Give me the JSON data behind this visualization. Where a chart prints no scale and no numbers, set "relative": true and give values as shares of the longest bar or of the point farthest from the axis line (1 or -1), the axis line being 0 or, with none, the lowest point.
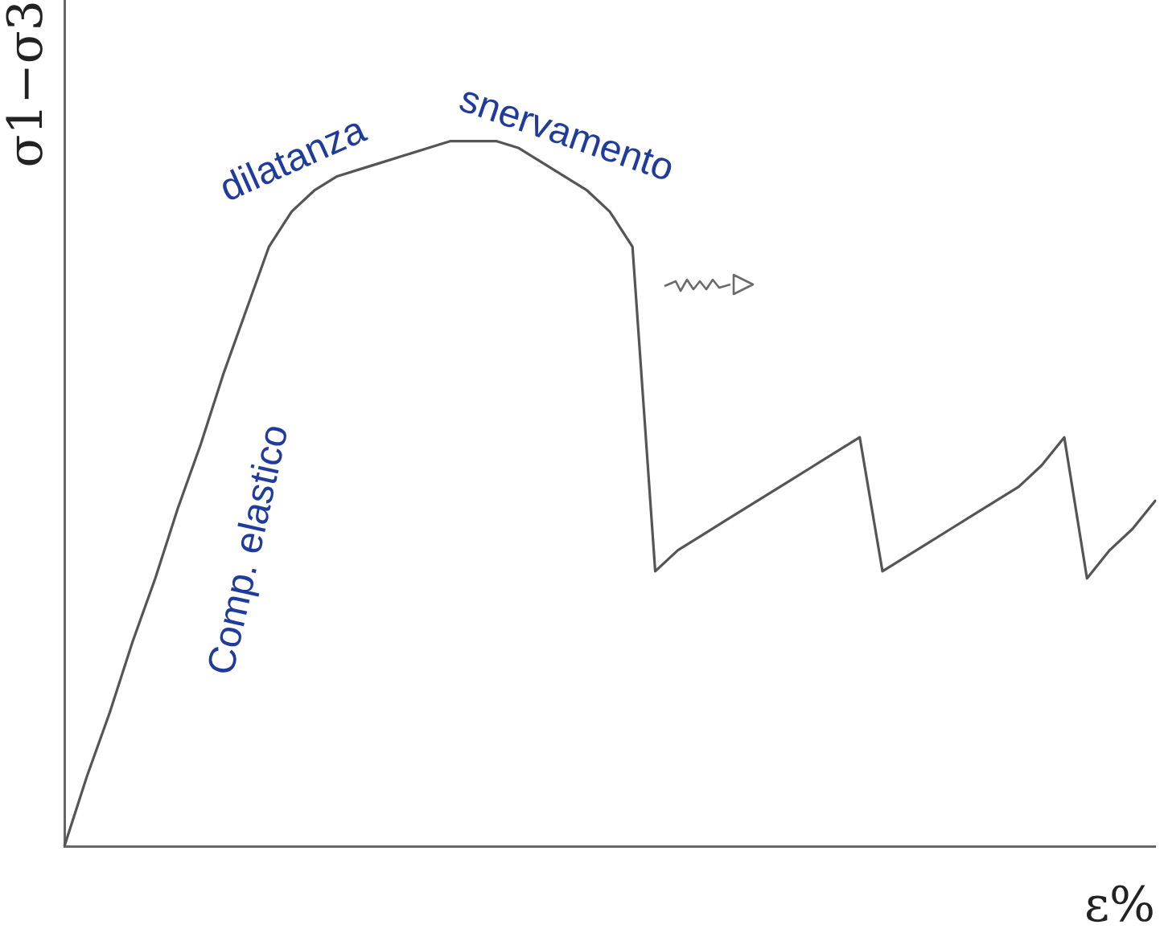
{
  "chart_data": {
    "type": "line",
    "relative": true,
    "xlabel": "ε%",
    "ylabel": "σ1−σ3",
    "annotations": [
      "dilatanza",
      "snervamento",
      "Comp. elastico"
    ],
    "categories": [
      null,
      null,
      null,
      null,
      null,
      null,
      null,
      null,
      null,
      null,
      null,
      null,
      null,
      null,
      null,
      null,
      null,
      null,
      null,
      null,
      null,
      null,
      null,
      null,
      null,
      null,
      null,
      null,
      null,
      null,
      null,
      null,
      null,
      null,
      null,
      null,
      null,
      null,
      null,
      null,
      null,
      null,
      null,
      null,
      null,
      null,
      null,
      null,
      null
    ],
    "series": [
      {
        "color": "#555555",
        "values": [
          0,
          0.1,
          0.19,
          0.29,
          0.38,
          0.48,
          0.57,
          0.67,
          0.76,
          0.85,
          0.9,
          0.93,
          0.95,
          0.96,
          0.97,
          0.98,
          0.99,
          1,
          1,
          1,
          0.99,
          0.97,
          0.95,
          0.93,
          0.9,
          0.85,
          0.39,
          0.42,
          0.44,
          0.46,
          0.48,
          0.5,
          0.52,
          0.54,
          0.56,
          0.58,
          0.39,
          0.41,
          0.43,
          0.45,
          0.47,
          0.49,
          0.51,
          0.54,
          0.58,
          0.38,
          0.42,
          0.45,
          0.49
        ]
      }
    ]
  }
}
